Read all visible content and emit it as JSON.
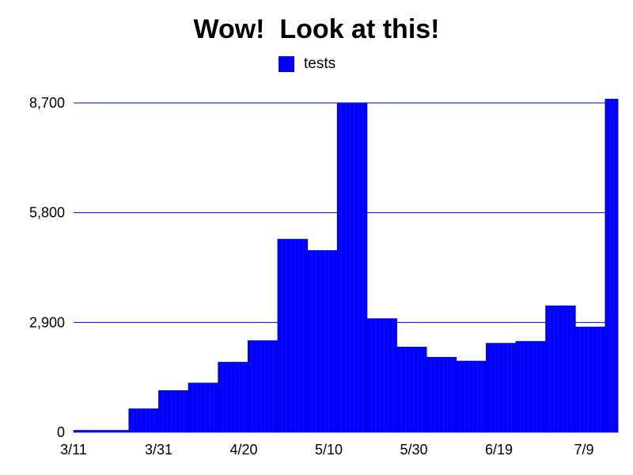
{
  "chart_data": {
    "type": "bar",
    "title": "Wow!  Look at this!",
    "xlabel": "",
    "ylabel": "",
    "legend": {
      "position": "top-center"
    },
    "grid": true,
    "x_ticks": [
      "3/11",
      "3/31",
      "4/20",
      "5/10",
      "5/30",
      "6/19",
      "7/9"
    ],
    "y_ticks": [
      "0",
      "2,900",
      "5,800",
      "8,700"
    ],
    "ylim": [
      0,
      8700
    ],
    "xlim": [
      "2020-03-11",
      "2020-07-17"
    ],
    "series": [
      {
        "name": "tests",
        "color": "#0000ff",
        "bars": [
          {
            "start": "2020-03-11",
            "end": "2020-03-24",
            "value": 50
          },
          {
            "start": "2020-03-24",
            "end": "2020-03-31",
            "value": 620
          },
          {
            "start": "2020-03-31",
            "end": "2020-04-07",
            "value": 1100
          },
          {
            "start": "2020-04-07",
            "end": "2020-04-14",
            "value": 1300
          },
          {
            "start": "2020-04-14",
            "end": "2020-04-21",
            "value": 1850
          },
          {
            "start": "2020-04-21",
            "end": "2020-04-28",
            "value": 2420
          },
          {
            "start": "2020-04-28",
            "end": "2020-05-05",
            "value": 5100
          },
          {
            "start": "2020-05-05",
            "end": "2020-05-12",
            "value": 4800
          },
          {
            "start": "2020-05-12",
            "end": "2020-05-19",
            "value": 8680
          },
          {
            "start": "2020-05-19",
            "end": "2020-05-26",
            "value": 3000
          },
          {
            "start": "2020-05-26",
            "end": "2020-06-02",
            "value": 2250
          },
          {
            "start": "2020-06-02",
            "end": "2020-06-09",
            "value": 1980
          },
          {
            "start": "2020-06-09",
            "end": "2020-06-16",
            "value": 1880
          },
          {
            "start": "2020-06-16",
            "end": "2020-06-23",
            "value": 2350
          },
          {
            "start": "2020-06-23",
            "end": "2020-06-30",
            "value": 2400
          },
          {
            "start": "2020-06-30",
            "end": "2020-07-07",
            "value": 3340
          },
          {
            "start": "2020-07-07",
            "end": "2020-07-14",
            "value": 2780
          },
          {
            "start": "2020-07-14",
            "end": "2020-07-17",
            "value": 8800
          }
        ]
      }
    ]
  }
}
